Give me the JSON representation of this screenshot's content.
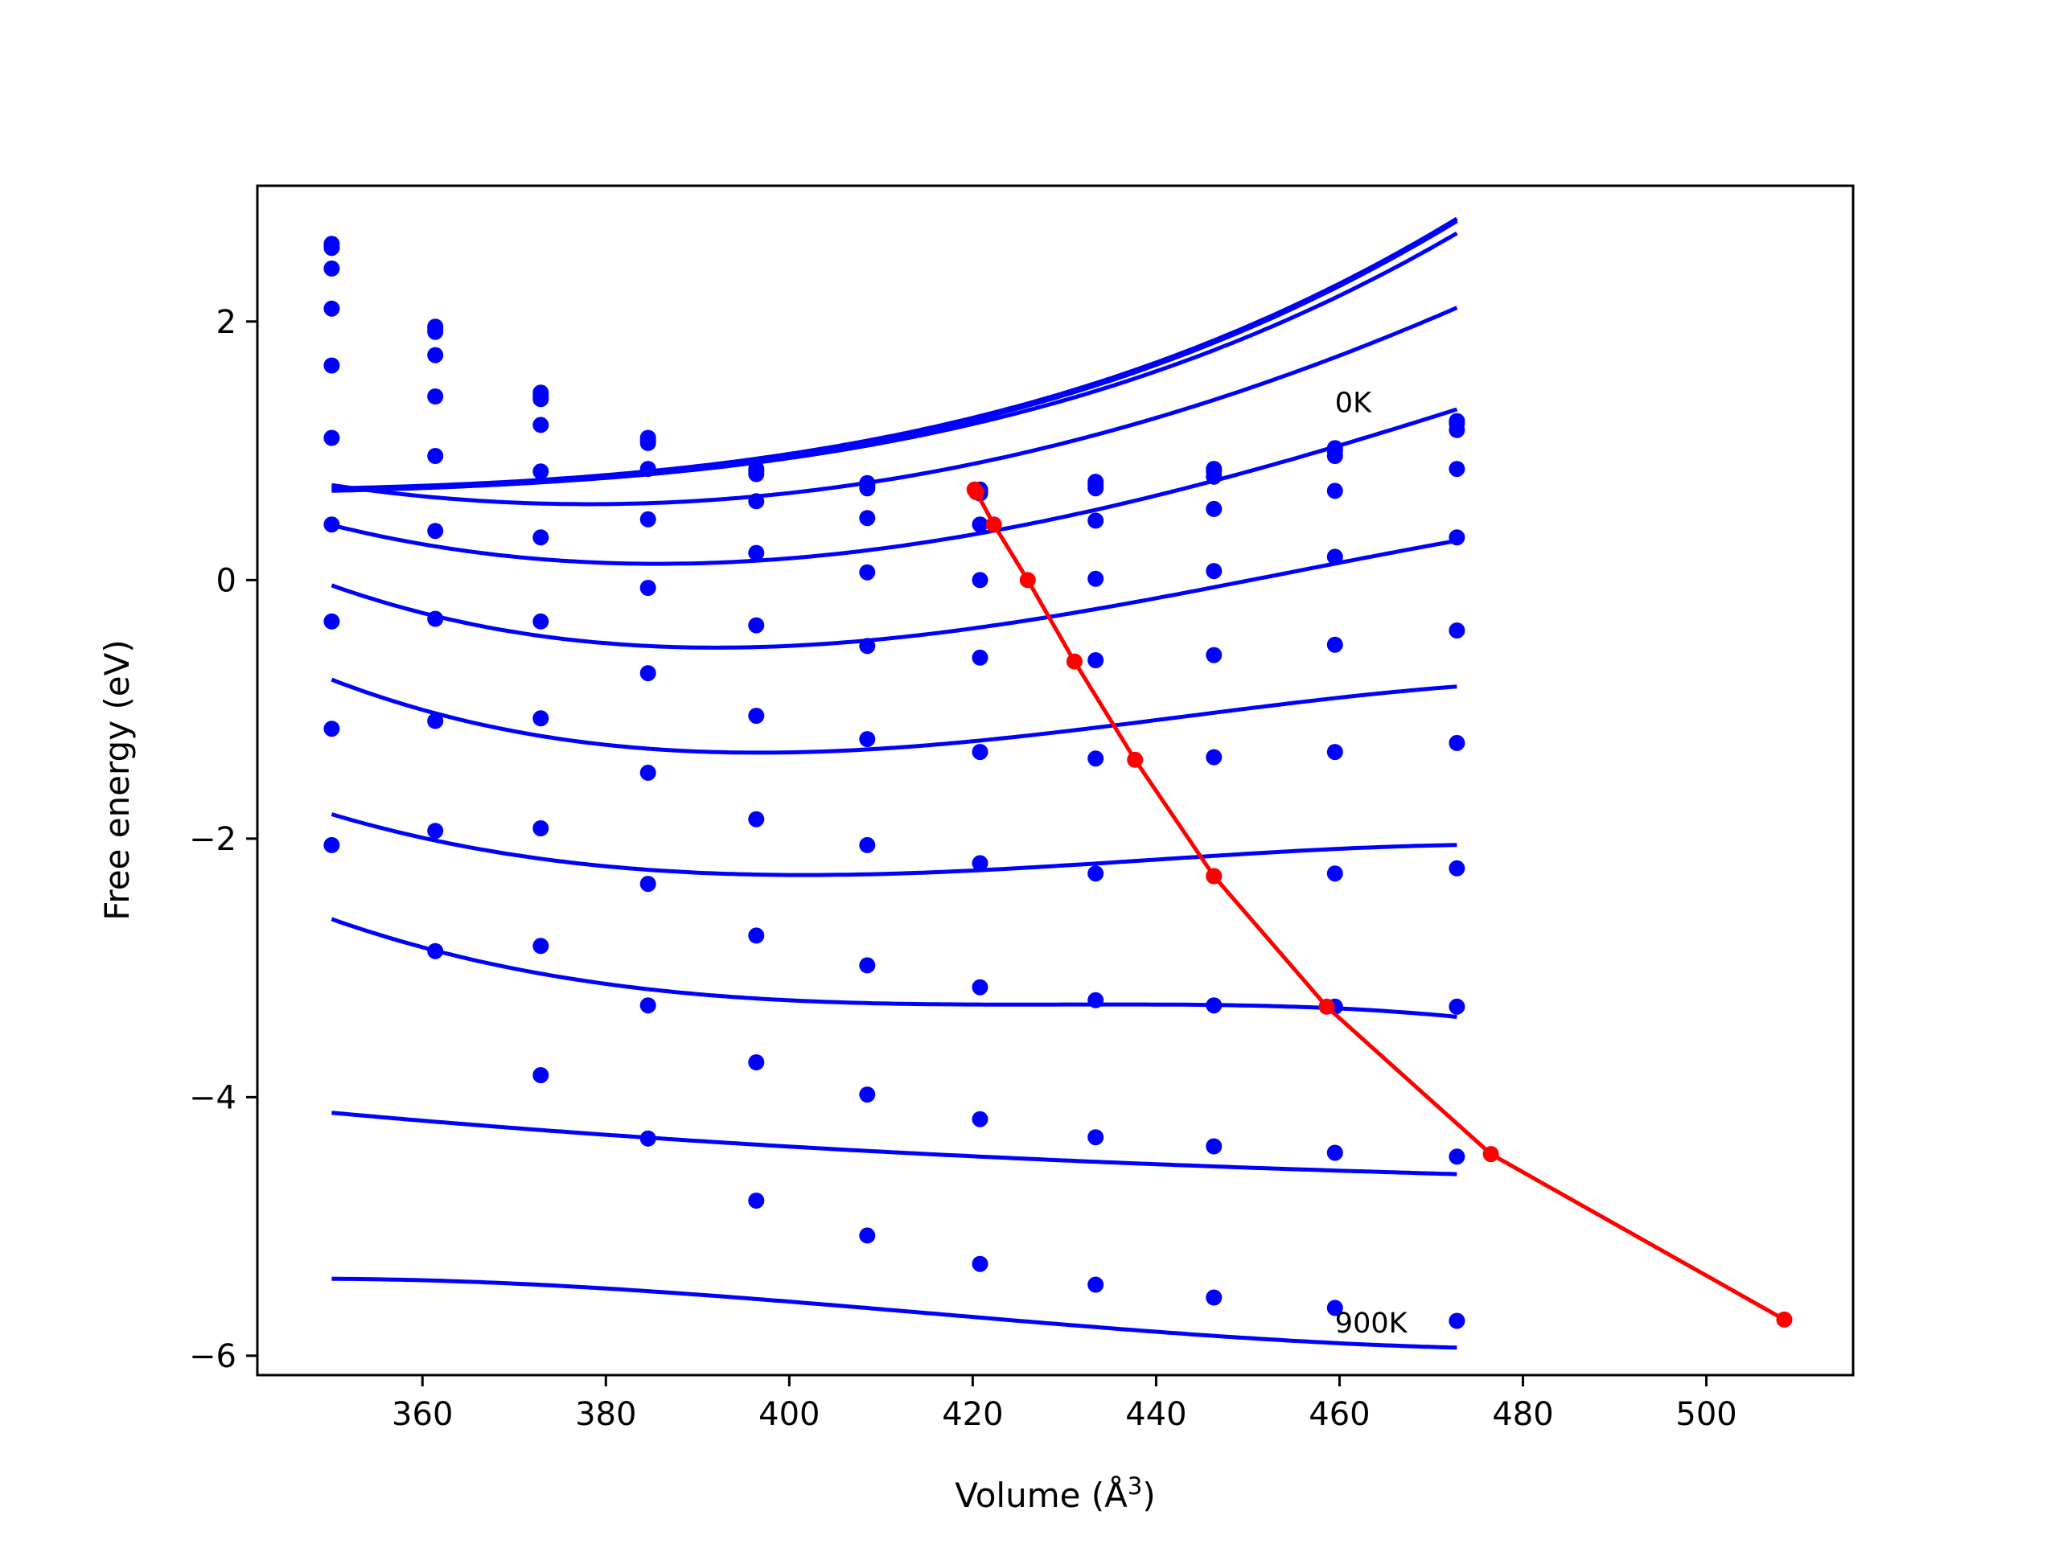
{
  "chart_data": {
    "type": "line",
    "xlabel": "Volume (Å",
    "xlabel_sup": "3",
    "xlabel_end": ")",
    "ylabel": "Free energy (eV)",
    "xlim": [
      342,
      516
    ],
    "ylim": [
      -6.15,
      3.05
    ],
    "x_ticks": [
      360,
      380,
      400,
      420,
      440,
      460,
      480,
      500
    ],
    "y_ticks": [
      2,
      0,
      -2,
      -4,
      -6
    ],
    "x_tick_labels": [
      "360",
      "380",
      "400",
      "420",
      "440",
      "460",
      "480",
      "500"
    ],
    "y_tick_labels": [
      "2",
      "0",
      "−2",
      "−4",
      "−6"
    ],
    "annotations": [
      {
        "text": "0K",
        "x": 459.5,
        "y": 1.3
      },
      {
        "text": "900K",
        "x": 459.5,
        "y": -5.82
      }
    ],
    "grid": false,
    "volumes": [
      350.1,
      361.4,
      372.9,
      384.6,
      396.4,
      408.5,
      420.8,
      433.4,
      446.3,
      459.5,
      472.8
    ],
    "series": [
      {
        "color": "#0000ff",
        "points": [
          2.6,
          1.96,
          1.45,
          1.1,
          0.86,
          0.75,
          0.7,
          0.76,
          0.86,
          1.02,
          1.23
        ],
        "fit": [
          1.255,
          0.0174,
          0.000186,
          7e-07
        ]
      },
      {
        "color": "#0000ff",
        "points": [
          2.58,
          1.94,
          1.43,
          1.08,
          0.84,
          0.73,
          0.69,
          0.74,
          0.84,
          1.0,
          1.21
        ],
        "fit": [
          1.237,
          0.0174,
          0.000186,
          7e-07
        ]
      },
      {
        "color": "#0000ff",
        "points": [
          2.57,
          1.92,
          1.4,
          1.06,
          0.82,
          0.71,
          0.67,
          0.71,
          0.8,
          0.96,
          1.16
        ],
        "fit": [
          1.207,
          0.0165,
          0.00018,
          7e-07
        ]
      },
      {
        "color": "#0000ff",
        "points": [
          2.41,
          1.74,
          1.2,
          0.86,
          0.61,
          0.48,
          0.43,
          0.46,
          0.55,
          0.69,
          0.86
        ],
        "fit": [
          0.898,
          0.0146,
          0.000165,
          -1.5e-07
        ]
      },
      {
        "color": "#0000ff",
        "points": [
          2.1,
          1.42,
          0.84,
          0.47,
          0.21,
          0.06,
          0.0,
          0.01,
          0.07,
          0.18,
          0.33
        ],
        "fit": [
          0.352,
          0.0124,
          0.000147,
          -6.5e-07
        ]
      },
      {
        "color": "#0000ff",
        "points": [
          1.66,
          0.96,
          0.33,
          -0.06,
          -0.35,
          -0.51,
          -0.6,
          -0.62,
          -0.58,
          -0.5,
          -0.39
        ],
        "fit": [
          -0.374,
          0.0097,
          0.000123,
          -1.2e-06
        ]
      },
      {
        "color": "#0000ff",
        "points": [
          1.1,
          0.38,
          -0.32,
          -0.72,
          -1.05,
          -1.23,
          -1.33,
          -1.38,
          -1.37,
          -1.33,
          -1.26
        ],
        "fit": [
          -1.247,
          0.0068,
          9.7e-05,
          -1.4e-06
        ]
      },
      {
        "color": "#0000ff",
        "points": [
          0.43,
          -0.3,
          -1.07,
          -1.49,
          -1.85,
          -2.05,
          -2.19,
          -2.27,
          -2.29,
          -2.27,
          -2.23
        ],
        "fit": [
          -2.247,
          0.0034,
          6.3e-05,
          -1.07e-06
        ]
      },
      {
        "color": "#0000ff",
        "points": [
          -0.32,
          -1.09,
          -1.92,
          -2.35,
          -2.75,
          -2.98,
          -3.15,
          -3.25,
          -3.29,
          -3.3,
          -3.3
        ],
        "fit": [
          -3.283,
          -0.0003,
          4e-05,
          -1.3e-06
        ]
      },
      {
        "color": "#0000ff",
        "points": [
          -1.15,
          -1.94,
          -2.83,
          -3.29,
          -3.73,
          -3.98,
          -4.17,
          -4.31,
          -4.38,
          -4.43,
          -4.46
        ],
        "fit": [
          -4.457,
          -0.0034,
          1.71e-05,
          -4.5e-08
        ]
      },
      {
        "color": "#0000ff",
        "points": [
          -2.05,
          -2.87,
          -3.83,
          -4.32,
          -4.8,
          -5.07,
          -5.29,
          -5.45,
          -5.55,
          -5.63,
          -5.73
        ],
        "fit": [
          -5.7,
          -0.006,
          5.25e-06,
          4.4e-07
        ]
      }
    ],
    "minima_line": {
      "color": "#ff0000",
      "x": [
        420.2,
        420.4,
        422.3,
        426.0,
        431.1,
        437.7,
        446.3,
        458.6,
        476.5,
        508.5
      ],
      "y": [
        0.7,
        0.68,
        0.43,
        0.0,
        -0.63,
        -1.39,
        -2.29,
        -3.3,
        -4.44,
        -5.72
      ]
    }
  }
}
